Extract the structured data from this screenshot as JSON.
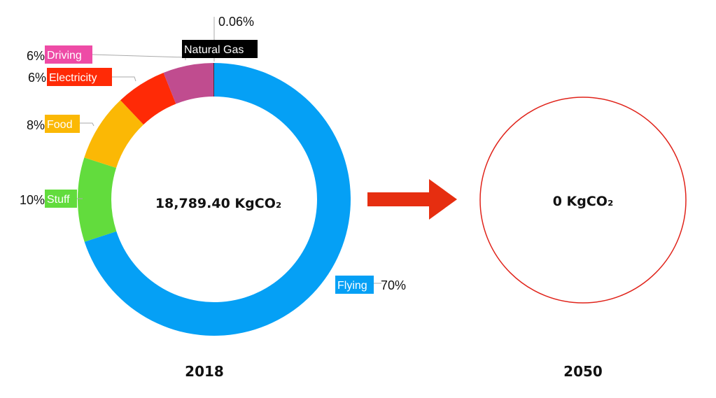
{
  "chart_data": [
    {
      "type": "pie",
      "variant": "donut",
      "center_label": "18,789.40 KgCO₂",
      "xlabel": "2018",
      "categories": [
        "Flying",
        "Stuff",
        "Food",
        "Electricity",
        "Driving",
        "Natural Gas"
      ],
      "values": [
        70,
        10,
        8,
        6,
        6,
        0.06
      ],
      "labels": [
        "70%",
        "10%",
        "8%",
        "6%",
        "6%",
        "0.06%"
      ],
      "colors": [
        "#05a0f5",
        "#62dc3d",
        "#fbb805",
        "#ff2a06",
        "#c04c8f",
        "#000000"
      ],
      "tag_colors": [
        "#05a0f5",
        "#62dc3d",
        "#fbb805",
        "#ff2a06",
        "#ee4ba6",
        "#000000"
      ]
    },
    {
      "type": "pie",
      "variant": "empty",
      "center_label": "0 KgCO₂",
      "xlabel": "2050",
      "outline_color": "#e0231a"
    }
  ],
  "arrow": {
    "color": "#e62e10"
  }
}
